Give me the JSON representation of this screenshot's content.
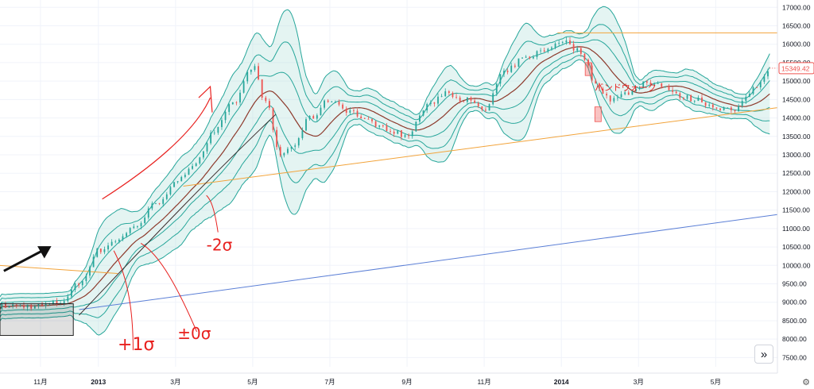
{
  "chart_data": {
    "type": "candlestick",
    "title": "",
    "instrument": "",
    "y_axis": {
      "position": "right",
      "ylim": [
        7250,
        17200
      ],
      "ticks": [
        "7500.00",
        "8000.00",
        "8500.00",
        "9000.00",
        "9500.00",
        "10000.00",
        "10500.00",
        "11000.00",
        "11500.00",
        "12000.00",
        "12500.00",
        "13000.00",
        "13500.00",
        "14000.00",
        "14500.00",
        "15000.00",
        "15500.00",
        "16000.00",
        "16500.00",
        "17000.00"
      ]
    },
    "x_axis": {
      "labels": [
        {
          "t": 0.5,
          "label": "11月"
        },
        {
          "t": 2,
          "label": "2013"
        },
        {
          "t": 4,
          "label": "3月"
        },
        {
          "t": 6,
          "label": "5月"
        },
        {
          "t": 8,
          "label": "7月"
        },
        {
          "t": 10,
          "label": "9月"
        },
        {
          "t": 12,
          "label": "11月"
        },
        {
          "t": 14,
          "label": "2014"
        },
        {
          "t": 16,
          "label": "3月"
        },
        {
          "t": 18,
          "label": "5月"
        }
      ],
      "range_months": [
        -0.55,
        19.6
      ]
    },
    "last_price": "15349.42",
    "price_path": [
      [
        -0.55,
        8900
      ],
      [
        0.5,
        8900
      ],
      [
        1.0,
        9000
      ],
      [
        1.5,
        9500
      ],
      [
        2.0,
        10400
      ],
      [
        2.5,
        10700
      ],
      [
        3.0,
        11100
      ],
      [
        3.5,
        11700
      ],
      [
        4.0,
        12200
      ],
      [
        4.5,
        12800
      ],
      [
        5.0,
        13600
      ],
      [
        5.5,
        14400
      ],
      [
        6.0,
        15400
      ],
      [
        6.35,
        14400
      ],
      [
        6.7,
        13000
      ],
      [
        7.0,
        13200
      ],
      [
        7.5,
        14000
      ],
      [
        8.0,
        14500
      ],
      [
        8.5,
        14200
      ],
      [
        9.0,
        13900
      ],
      [
        9.5,
        13700
      ],
      [
        10.0,
        13500
      ],
      [
        10.5,
        14300
      ],
      [
        11.0,
        14700
      ],
      [
        11.5,
        14500
      ],
      [
        12.0,
        14200
      ],
      [
        12.5,
        15200
      ],
      [
        13.0,
        15600
      ],
      [
        13.5,
        15800
      ],
      [
        14.0,
        16100
      ],
      [
        14.5,
        15800
      ],
      [
        14.9,
        14900
      ],
      [
        15.3,
        14500
      ],
      [
        15.8,
        14700
      ],
      [
        16.2,
        15000
      ],
      [
        16.6,
        14900
      ],
      [
        17.0,
        14600
      ],
      [
        17.5,
        14500
      ],
      [
        18.0,
        14300
      ],
      [
        18.5,
        14200
      ],
      [
        19.0,
        14800
      ],
      [
        19.4,
        15349.42
      ]
    ],
    "bands": {
      "sigma_multiples": [
        1,
        2,
        3
      ]
    },
    "lines": [
      {
        "name": "orange-resistance",
        "color": "#f2a33a",
        "from": [
          13.9,
          16310
        ],
        "to": [
          19.6,
          16310
        ]
      },
      {
        "name": "orange-support",
        "color": "#f2a33a",
        "from": [
          4.2,
          12150
        ],
        "to": [
          19.6,
          14280
        ]
      },
      {
        "name": "orange-short",
        "color": "#f2a33a",
        "from": [
          -0.55,
          10000
        ],
        "to": [
          2.5,
          9780
        ]
      },
      {
        "name": "blue-trend",
        "color": "#5b7fd6",
        "from": [
          1.5,
          8800
        ],
        "to": [
          19.6,
          11380
        ]
      }
    ],
    "annotations": [
      {
        "name": "band-walk-label",
        "text": "バンドウォーク",
        "color": "#e26b74"
      },
      {
        "name": "plus-one-sigma",
        "text": "+1σ"
      },
      {
        "name": "plus-minus-zero-sigma",
        "text": "±0σ"
      },
      {
        "name": "minus-two-sigma",
        "text": "-2σ"
      }
    ]
  },
  "colors": {
    "band_stroke": "#26a69a",
    "band_fill": "#b2dfdb",
    "midline": "#8d3a2c",
    "trend_line": "#3a2d2d",
    "candle_up": "#26a69a",
    "candle_down": "#ef5350",
    "price_label": "#ef5350",
    "handwriting": "#e8201e"
  },
  "ui": {
    "scroll_right_icon": "double-chevron-right-icon",
    "settings_icon": "gear-icon"
  }
}
